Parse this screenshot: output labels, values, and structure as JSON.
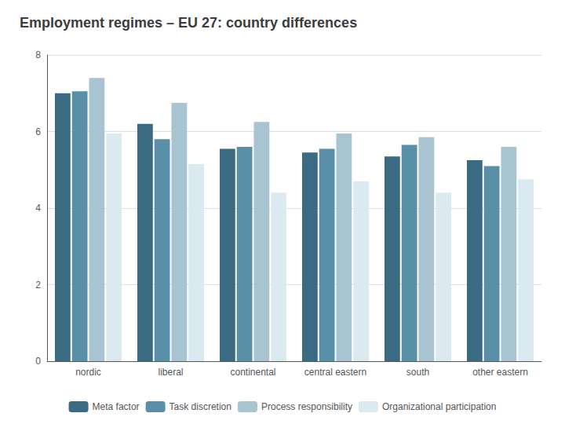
{
  "chart_data": {
    "type": "bar",
    "title": "Employment regimes – EU 27: country differences",
    "categories": [
      "nordic",
      "liberal",
      "continental",
      "central eastern",
      "south",
      "other eastern"
    ],
    "series": [
      {
        "name": "Meta factor",
        "color": "#3a6b82",
        "values": [
          7.0,
          6.2,
          5.55,
          5.45,
          5.35,
          5.25
        ]
      },
      {
        "name": "Task discretion",
        "color": "#5a8fa8",
        "values": [
          7.05,
          5.8,
          5.6,
          5.55,
          5.65,
          5.1
        ]
      },
      {
        "name": "Process responsibility",
        "color": "#a8c4d0",
        "values": [
          7.4,
          6.75,
          6.25,
          5.95,
          5.85,
          5.6
        ]
      },
      {
        "name": "Organizational participation",
        "color": "#daeaf0",
        "values": [
          5.95,
          5.15,
          4.4,
          4.7,
          4.4,
          4.75
        ]
      }
    ],
    "ylim": [
      0,
      8
    ],
    "yticks": [
      0,
      2,
      4,
      6,
      8
    ],
    "grid": true,
    "legend": "bottom"
  }
}
